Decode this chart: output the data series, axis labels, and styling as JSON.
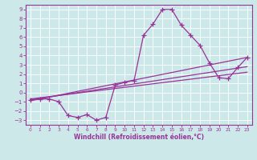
{
  "xlabel": "Windchill (Refroidissement éolien,°C)",
  "bg_color": "#cce8e8",
  "line_color": "#993399",
  "grid_color": "#ffffff",
  "xlim": [
    -0.5,
    23.5
  ],
  "ylim": [
    -3.5,
    9.5
  ],
  "xticks": [
    0,
    1,
    2,
    3,
    4,
    5,
    6,
    7,
    8,
    9,
    10,
    11,
    12,
    13,
    14,
    15,
    16,
    17,
    18,
    19,
    20,
    21,
    22,
    23
  ],
  "yticks": [
    -3,
    -2,
    -1,
    0,
    1,
    2,
    3,
    4,
    5,
    6,
    7,
    8,
    9
  ],
  "jagged_x": [
    0,
    1,
    2,
    3,
    4,
    5,
    6,
    7,
    8,
    9,
    10,
    11,
    12,
    13,
    14,
    15,
    16,
    17,
    18,
    19,
    20,
    21,
    22,
    23
  ],
  "jagged_y": [
    -0.8,
    -0.7,
    -0.7,
    -1.0,
    -2.5,
    -2.7,
    -2.4,
    -3.0,
    -2.7,
    0.8,
    1.1,
    1.3,
    6.2,
    7.4,
    9.0,
    9.0,
    7.3,
    6.2,
    5.1,
    3.2,
    1.6,
    1.5,
    2.7,
    3.8
  ],
  "line1_x": [
    0,
    23
  ],
  "line1_y": [
    -0.9,
    3.8
  ],
  "line2_x": [
    0,
    23
  ],
  "line2_y": [
    -0.8,
    2.8
  ],
  "line3_x": [
    0,
    23
  ],
  "line3_y": [
    -0.7,
    2.2
  ]
}
